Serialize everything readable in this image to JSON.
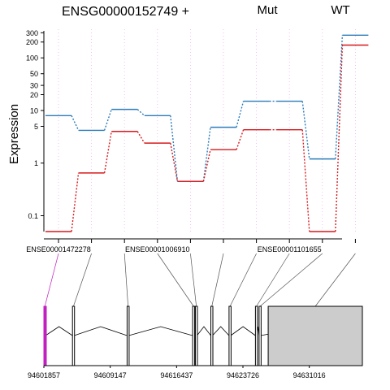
{
  "header": {
    "gene_title": "ENSG00000152749 +",
    "mut_label": "Mut",
    "wt_label": "WT"
  },
  "colors": {
    "mut": "#d7191c",
    "wt": "#2b7bba",
    "highlight_exon": "#c020c0",
    "utr_fill": "#cccccc"
  },
  "chart_data": {
    "type": "line",
    "scale": "log",
    "ylabel": "Expression",
    "yticks": [
      0.1,
      1,
      5,
      10,
      20,
      30,
      50,
      100,
      200,
      300
    ],
    "ytick_labels": [
      "0.1",
      "1",
      "5",
      "10",
      "20",
      "30",
      "50",
      "100",
      "200",
      "300"
    ],
    "ylim": [
      0.05,
      350
    ],
    "exon_labels": [
      {
        "label": "ENSE00001472278",
        "exon": 1
      },
      {
        "label": "ENSE00001006910",
        "exon": 4
      },
      {
        "label": "ENSE00001101655",
        "exon": 8
      }
    ],
    "exons": [
      1,
      2,
      3,
      4,
      5,
      6,
      7,
      8,
      9,
      10
    ],
    "series": [
      {
        "name": "WT",
        "values": [
          8.0,
          4.2,
          10.5,
          8.0,
          0.45,
          4.8,
          15.0,
          15.0,
          1.2,
          270
        ]
      },
      {
        "name": "Mut",
        "values": [
          0.05,
          0.65,
          4.0,
          2.4,
          0.45,
          1.8,
          4.3,
          4.3,
          0.05,
          175
        ]
      }
    ],
    "genomic_ticks": [
      "94601857",
      "94609147",
      "94616437",
      "94623726",
      "94631016"
    ]
  },
  "gene_model": {
    "exon_positions": [
      94601857,
      94605000,
      94611000,
      94618200,
      94618500,
      94620200,
      94622200,
      94625100,
      94625500,
      94636000
    ],
    "utr_start": 94626500,
    "utr_end": 94634000
  }
}
